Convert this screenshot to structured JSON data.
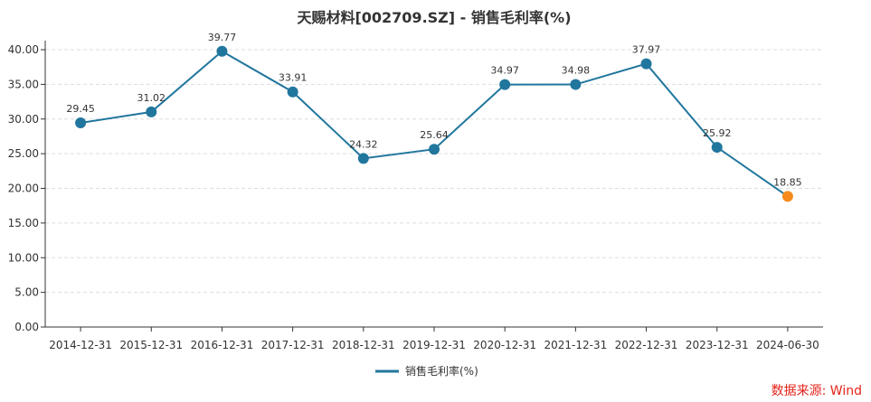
{
  "chart_data": {
    "type": "line",
    "title": "天赐材料[002709.SZ] - 销售毛利率(%)",
    "categories": [
      "2014-12-31",
      "2015-12-31",
      "2016-12-31",
      "2017-12-31",
      "2018-12-31",
      "2019-12-31",
      "2020-12-31",
      "2021-12-31",
      "2022-12-31",
      "2023-12-31",
      "2024-06-30"
    ],
    "series": [
      {
        "name": "销售毛利率(%)",
        "values": [
          29.45,
          31.02,
          39.77,
          33.91,
          24.32,
          25.64,
          34.97,
          34.98,
          37.97,
          25.92,
          18.85
        ],
        "labels": [
          "29.45",
          "31.02",
          "39.77",
          "33.91",
          "24.32",
          "25.64",
          "34.97",
          "34.98",
          "37.97",
          "25.92",
          "18.85"
        ]
      }
    ],
    "yticks": [
      "0.00",
      "5.00",
      "10.00",
      "15.00",
      "20.00",
      "25.00",
      "30.00",
      "35.00",
      "40.00"
    ],
    "ylim": [
      0,
      40
    ],
    "grid": true,
    "legend_position": "bottom-center",
    "line_color": "#21769d",
    "highlight_color": "#f58b1f",
    "axis_color": "#333333",
    "grid_color": "#dddddd"
  },
  "source": "数据来源: Wind"
}
